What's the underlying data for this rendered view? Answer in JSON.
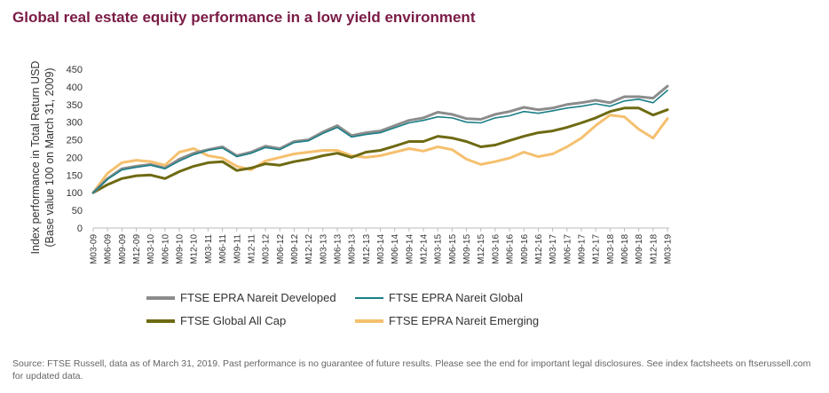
{
  "title": "Global real estate equity performance in a low yield environment",
  "source": "Source: FTSE Russell, data as of March 31, 2019. Past performance is no guarantee of future results. Please see the end for important legal disclosures. See index factsheets on ftserussell.com for updated data.",
  "chart_data": {
    "type": "line",
    "title": "Global real estate equity performance in a low yield environment",
    "ylabel": "Index performance in Total Return USD (Base value 100 on March 31, 2009)",
    "xlabel": "",
    "ylim": [
      0,
      450
    ],
    "yticks": [
      0,
      50,
      100,
      150,
      200,
      250,
      300,
      350,
      400,
      450
    ],
    "grid": false,
    "legend_position": "bottom",
    "x_tick_labels": [
      "M03-09",
      "M06-09",
      "M09-09",
      "M12-09",
      "M03-10",
      "M06-10",
      "M09-10",
      "M12-10",
      "M03-11",
      "M06-11",
      "M09-11",
      "M12-11",
      "M03-12",
      "M06-12",
      "M09-12",
      "M12-12",
      "M03-13",
      "M06-13",
      "M09-13",
      "M12-13",
      "M03-14",
      "M06-14",
      "M09-14",
      "M12-14",
      "M03-15",
      "M06-15",
      "M09-15",
      "M12-15",
      "M03-16",
      "M06-16",
      "M09-16",
      "M12-16",
      "M03-17",
      "M06-17",
      "M09-17",
      "M12-17",
      "M03-18",
      "M06-18",
      "M09-18",
      "M12-18",
      "M03-19"
    ],
    "series": [
      {
        "name": "FTSE EPRA Nareit Developed",
        "color": "#8c8c8c",
        "values": [
          100,
          140,
          168,
          175,
          180,
          170,
          195,
          212,
          222,
          230,
          205,
          215,
          232,
          225,
          245,
          250,
          272,
          290,
          262,
          270,
          275,
          290,
          305,
          312,
          328,
          322,
          310,
          308,
          322,
          330,
          342,
          335,
          340,
          350,
          355,
          362,
          355,
          372,
          372,
          368,
          402
        ]
      },
      {
        "name": "FTSE EPRA Nareit Global",
        "color": "#1a7f86",
        "values": [
          100,
          138,
          165,
          172,
          178,
          168,
          190,
          208,
          220,
          227,
          202,
          212,
          228,
          222,
          242,
          247,
          268,
          285,
          258,
          265,
          270,
          284,
          298,
          305,
          315,
          312,
          300,
          298,
          312,
          318,
          330,
          325,
          332,
          340,
          345,
          352,
          345,
          360,
          365,
          355,
          390
        ]
      },
      {
        "name": "FTSE Global All Cap",
        "color": "#6e6a12",
        "values": [
          100,
          123,
          140,
          148,
          150,
          140,
          160,
          175,
          185,
          188,
          163,
          170,
          182,
          178,
          188,
          195,
          205,
          212,
          200,
          215,
          220,
          232,
          245,
          245,
          260,
          255,
          245,
          230,
          235,
          248,
          260,
          270,
          275,
          285,
          298,
          312,
          330,
          340,
          340,
          320,
          335
        ]
      },
      {
        "name": "FTSE EPRA Nareit Emerging",
        "color": "#f5c06e",
        "values": [
          100,
          155,
          185,
          192,
          188,
          178,
          215,
          225,
          205,
          198,
          175,
          165,
          190,
          200,
          210,
          215,
          220,
          220,
          205,
          200,
          205,
          215,
          225,
          218,
          230,
          222,
          195,
          180,
          188,
          198,
          215,
          202,
          210,
          230,
          255,
          290,
          320,
          315,
          280,
          255,
          310
        ]
      }
    ]
  },
  "legend": {
    "items": [
      {
        "label": "FTSE EPRA Nareit Developed",
        "color": "#8c8c8c"
      },
      {
        "label": "FTSE EPRA Nareit Global",
        "color": "#1a7f86"
      },
      {
        "label": "FTSE Global All Cap",
        "color": "#6e6a12"
      },
      {
        "label": "FTSE EPRA Nareit Emerging",
        "color": "#f5c06e"
      }
    ]
  }
}
